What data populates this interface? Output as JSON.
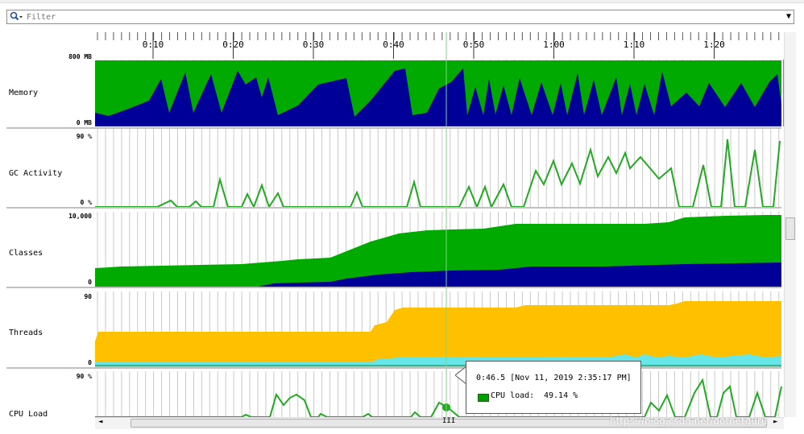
{
  "filter": {
    "placeholder": "Filter",
    "icon": "magnifier-icon"
  },
  "timeline": {
    "ticks": [
      "0:10",
      "0:20",
      "0:30",
      "0:40",
      "0:50",
      "1:00",
      "1:10",
      "1:20"
    ]
  },
  "rows": [
    {
      "name": "Memory",
      "max_label": "800 MB",
      "min_label": "0 MB"
    },
    {
      "name": "GC Activity",
      "max_label": "90 %",
      "min_label": "0 %"
    },
    {
      "name": "Classes",
      "max_label": "10,000",
      "min_label": "0"
    },
    {
      "name": "Threads",
      "max_label": "90",
      "min_label": "0"
    },
    {
      "name": "CPU Load",
      "max_label": "90 %",
      "min_label": ""
    }
  ],
  "tooltip": {
    "title": "0:46.5 [Nov 11, 2019 2:35:17 PM]",
    "series_label": "CPU load:",
    "series_value": "49.14 %"
  },
  "scrollbar": {
    "grip": "III",
    "left_arrow": "◄",
    "right_arrow": "►"
  },
  "watermark": "https://blog.csdn.net/dotnetguru",
  "colors": {
    "green": "#00aa00",
    "navy": "#000099",
    "orange": "#ffc000",
    "cyan": "#66e6e6",
    "line_green": "#22aa22",
    "cursor": "#7fd67f"
  }
}
